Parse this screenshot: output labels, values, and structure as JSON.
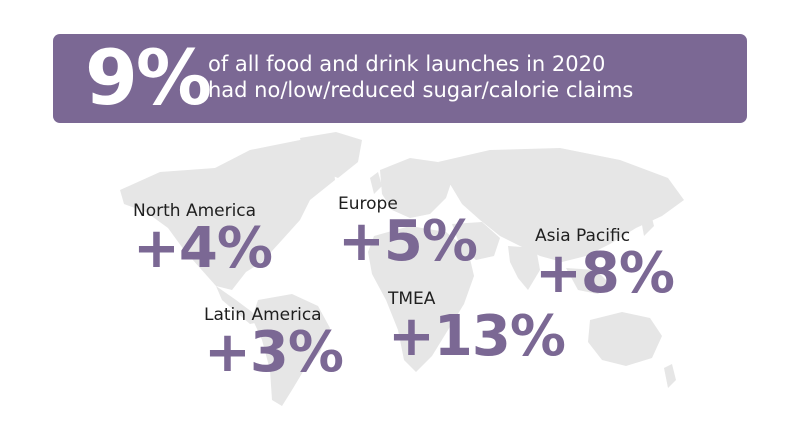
{
  "headline": {
    "stat": "9%",
    "line1": "of all food and drink launches in 2020",
    "line2": "had no/low/reduced sugar/calorie claims"
  },
  "regions": [
    {
      "name": "North America",
      "value": "+4%"
    },
    {
      "name": "Europe",
      "value": "+5%"
    },
    {
      "name": "Asia Pacific",
      "value": "+8%"
    },
    {
      "name": "Latin America",
      "value": "+3%"
    },
    {
      "name": "TMEA",
      "value": "+13%"
    }
  ],
  "colors": {
    "accent": "#7b6894",
    "map": "#e6e6e6",
    "text": "#1f1f1f"
  }
}
